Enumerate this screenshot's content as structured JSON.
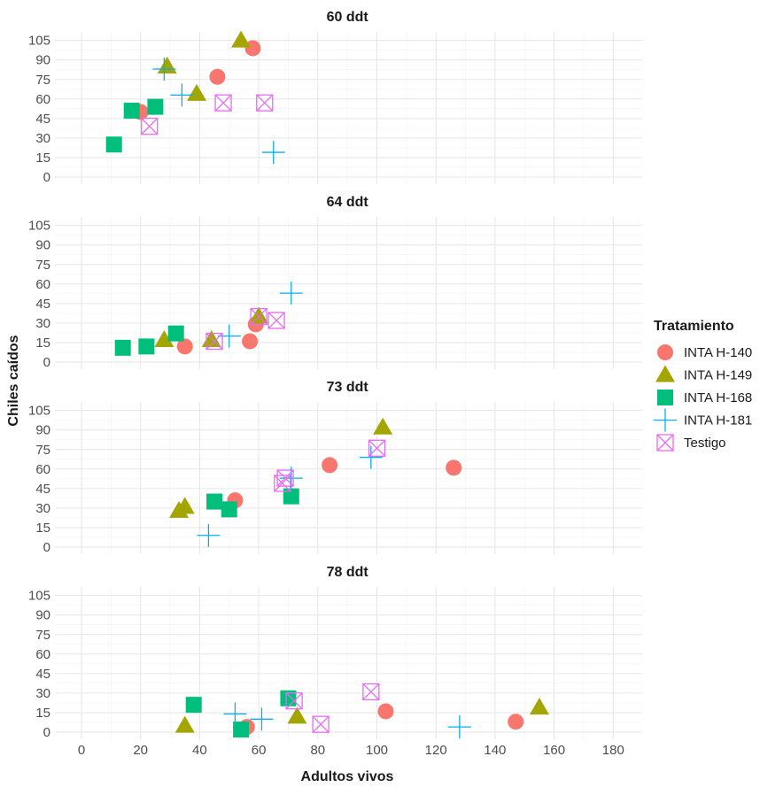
{
  "chart_data": {
    "type": "scatter",
    "xlabel": "Adultos vivos",
    "ylabel": "Chiles caídos",
    "xlim": [
      0,
      180
    ],
    "x_ticks": [
      0,
      20,
      40,
      60,
      80,
      100,
      120,
      140,
      160,
      180
    ],
    "y_ticks": [
      0,
      15,
      30,
      45,
      60,
      75,
      90,
      105
    ],
    "ylim": [
      0,
      110
    ],
    "grid": true,
    "legend": {
      "title": "Tratamiento",
      "position": "right",
      "entries": [
        "INTA H-140",
        "INTA H-149",
        "INTA H-168",
        "INTA H-181",
        "Testigo"
      ]
    },
    "series_styles": [
      {
        "name": "INTA H-140",
        "shape": "circle",
        "color": "#F8766D"
      },
      {
        "name": "INTA H-149",
        "shape": "triangle",
        "color": "#A3A500"
      },
      {
        "name": "INTA H-168",
        "shape": "square",
        "color": "#00BF7D"
      },
      {
        "name": "INTA H-181",
        "shape": "plus",
        "color": "#00B0F6"
      },
      {
        "name": "Testigo",
        "shape": "square-cross",
        "color": "#E76BF3"
      }
    ],
    "panels": [
      {
        "title": "60 ddt",
        "series": [
          {
            "name": "INTA H-140",
            "points": [
              [
                20,
                50
              ],
              [
                46,
                77
              ],
              [
                58,
                99
              ]
            ]
          },
          {
            "name": "INTA H-149",
            "points": [
              [
                29,
                85
              ],
              [
                39,
                64
              ],
              [
                54,
                105
              ]
            ]
          },
          {
            "name": "INTA H-168",
            "points": [
              [
                11,
                25
              ],
              [
                17,
                51
              ],
              [
                25,
                54
              ]
            ]
          },
          {
            "name": "INTA H-181",
            "points": [
              [
                28,
                83
              ],
              [
                34,
                63
              ],
              [
                65,
                19
              ]
            ]
          },
          {
            "name": "Testigo",
            "points": [
              [
                23,
                39
              ],
              [
                48,
                57
              ],
              [
                62,
                57
              ]
            ]
          }
        ]
      },
      {
        "title": "64 ddt",
        "series": [
          {
            "name": "INTA H-140",
            "points": [
              [
                35,
                12
              ],
              [
                57,
                16
              ],
              [
                59,
                29
              ]
            ]
          },
          {
            "name": "INTA H-149",
            "points": [
              [
                28,
                17
              ],
              [
                44,
                17
              ],
              [
                60,
                35
              ]
            ]
          },
          {
            "name": "INTA H-168",
            "points": [
              [
                14,
                11
              ],
              [
                22,
                12
              ],
              [
                32,
                22
              ]
            ]
          },
          {
            "name": "INTA H-181",
            "points": [
              [
                50,
                20
              ],
              [
                71,
                53
              ]
            ]
          },
          {
            "name": "Testigo",
            "points": [
              [
                45,
                16
              ],
              [
                60,
                35
              ],
              [
                66,
                32
              ]
            ]
          }
        ]
      },
      {
        "title": "73 ddt",
        "series": [
          {
            "name": "INTA H-140",
            "points": [
              [
                52,
                36
              ],
              [
                84,
                63
              ],
              [
                126,
                61
              ]
            ]
          },
          {
            "name": "INTA H-149",
            "points": [
              [
                33,
                28
              ],
              [
                35,
                31
              ],
              [
                102,
                92
              ]
            ]
          },
          {
            "name": "INTA H-168",
            "points": [
              [
                45,
                35
              ],
              [
                50,
                29
              ],
              [
                71,
                39
              ]
            ]
          },
          {
            "name": "INTA H-181",
            "points": [
              [
                43,
                9
              ],
              [
                71,
                53
              ],
              [
                98,
                69
              ]
            ]
          },
          {
            "name": "Testigo",
            "points": [
              [
                68,
                49
              ],
              [
                69,
                53
              ],
              [
                100,
                76
              ]
            ]
          }
        ]
      },
      {
        "title": "78 ddt",
        "series": [
          {
            "name": "INTA H-140",
            "points": [
              [
                56,
                4
              ],
              [
                103,
                16
              ],
              [
                147,
                8
              ]
            ]
          },
          {
            "name": "INTA H-149",
            "points": [
              [
                35,
                5
              ],
              [
                73,
                12
              ],
              [
                155,
                19
              ]
            ]
          },
          {
            "name": "INTA H-168",
            "points": [
              [
                38,
                21
              ],
              [
                54,
                2
              ],
              [
                70,
                26
              ]
            ]
          },
          {
            "name": "INTA H-181",
            "points": [
              [
                52,
                14
              ],
              [
                61,
                10
              ],
              [
                128,
                4
              ]
            ]
          },
          {
            "name": "Testigo",
            "points": [
              [
                72,
                24
              ],
              [
                81,
                6
              ],
              [
                98,
                31
              ]
            ]
          }
        ]
      }
    ]
  }
}
